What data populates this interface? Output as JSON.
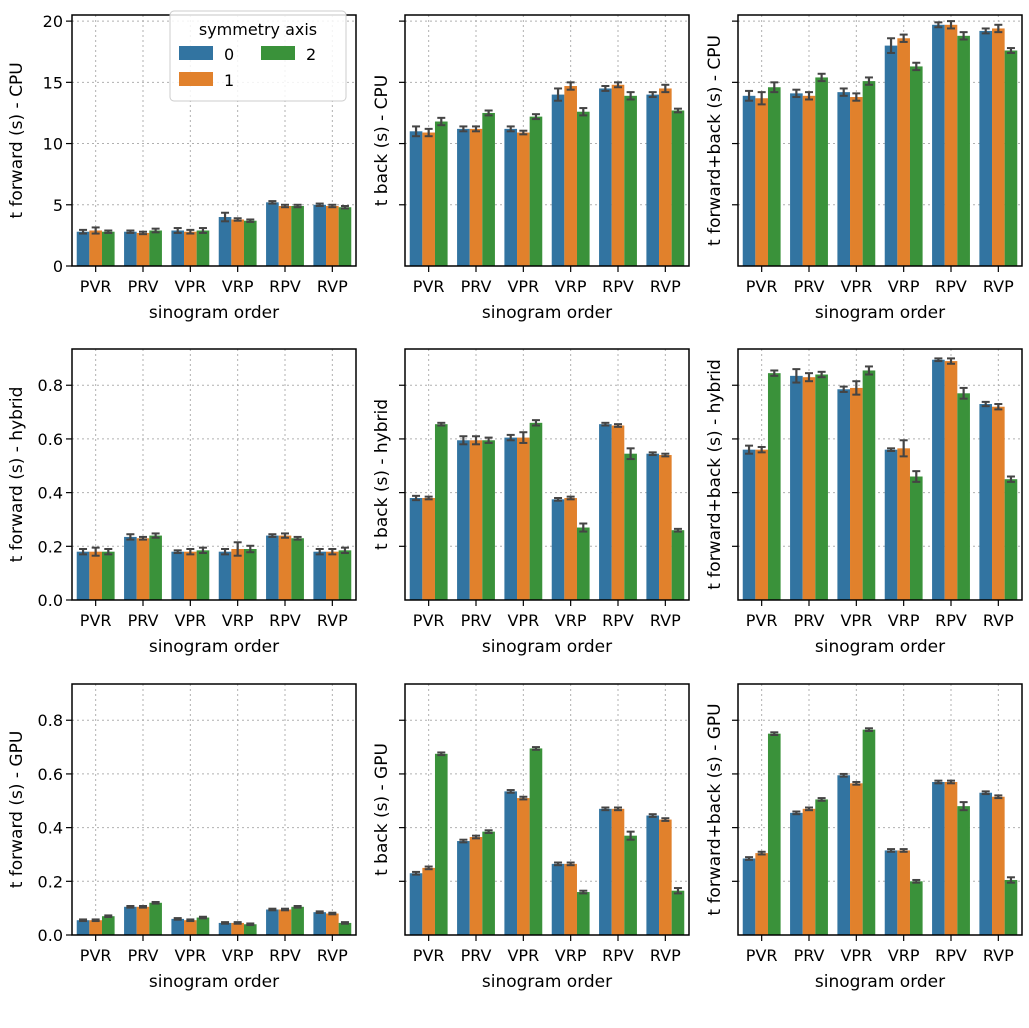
{
  "colors": {
    "0": "#3274a1",
    "1": "#e1812c",
    "2": "#3a923a",
    "error_bar": "#444444"
  },
  "legend": {
    "title": "symmetry axis",
    "labels": [
      "0",
      "1",
      "2"
    ]
  },
  "chart_data": [
    {
      "id": "cpu-forward",
      "type": "bar",
      "ylabel": "t forward (s) - CPU",
      "xlabel": "sinogram order",
      "categories": [
        "PVR",
        "PRV",
        "VPR",
        "VRP",
        "RPV",
        "RVP"
      ],
      "ylim": [
        0,
        20.5
      ],
      "yticks": [
        0,
        5,
        10,
        15,
        20
      ],
      "ytick_labels": [
        "0",
        "5",
        "10",
        "15",
        "20"
      ],
      "series": [
        {
          "name": "0",
          "values": [
            2.8,
            2.8,
            2.9,
            4.0,
            5.2,
            5.0
          ],
          "errors": [
            0.15,
            0.1,
            0.2,
            0.35,
            0.1,
            0.1
          ]
        },
        {
          "name": "1",
          "values": [
            2.9,
            2.7,
            2.8,
            3.8,
            4.9,
            4.9
          ],
          "errors": [
            0.25,
            0.1,
            0.15,
            0.1,
            0.1,
            0.1
          ]
        },
        {
          "name": "2",
          "values": [
            2.8,
            2.9,
            2.9,
            3.7,
            4.9,
            4.8
          ],
          "errors": [
            0.1,
            0.15,
            0.2,
            0.1,
            0.1,
            0.1
          ]
        }
      ]
    },
    {
      "id": "cpu-back",
      "type": "bar",
      "ylabel": "t back (s) - CPU",
      "xlabel": "sinogram order",
      "categories": [
        "PVR",
        "PRV",
        "VPR",
        "VRP",
        "RPV",
        "RVP"
      ],
      "ylim": [
        0,
        20.5
      ],
      "yticks": [
        5,
        10,
        15,
        20
      ],
      "ytick_labels": [],
      "series": [
        {
          "name": "0",
          "values": [
            11.0,
            11.2,
            11.2,
            14.0,
            14.5,
            14.0
          ],
          "errors": [
            0.4,
            0.2,
            0.2,
            0.5,
            0.2,
            0.2
          ]
        },
        {
          "name": "1",
          "values": [
            10.9,
            11.2,
            10.9,
            14.7,
            14.8,
            14.5
          ],
          "errors": [
            0.3,
            0.2,
            0.15,
            0.3,
            0.2,
            0.3
          ]
        },
        {
          "name": "2",
          "values": [
            11.8,
            12.5,
            12.2,
            12.6,
            13.9,
            12.7
          ],
          "errors": [
            0.3,
            0.2,
            0.2,
            0.3,
            0.3,
            0.15
          ]
        }
      ]
    },
    {
      "id": "cpu-forward-back",
      "type": "bar",
      "ylabel": "t forward+back (s) - CPU",
      "xlabel": "sinogram order",
      "categories": [
        "PVR",
        "PRV",
        "VPR",
        "VRP",
        "RPV",
        "RVP"
      ],
      "ylim": [
        0,
        20.5
      ],
      "yticks": [
        5,
        10,
        15,
        20
      ],
      "ytick_labels": [],
      "series": [
        {
          "name": "0",
          "values": [
            13.9,
            14.1,
            14.2,
            18.0,
            19.7,
            19.2
          ],
          "errors": [
            0.4,
            0.3,
            0.3,
            0.6,
            0.2,
            0.2
          ]
        },
        {
          "name": "1",
          "values": [
            13.7,
            13.9,
            13.8,
            18.6,
            19.7,
            19.4
          ],
          "errors": [
            0.5,
            0.3,
            0.3,
            0.3,
            0.3,
            0.3
          ]
        },
        {
          "name": "2",
          "values": [
            14.6,
            15.4,
            15.1,
            16.3,
            18.8,
            17.6
          ],
          "errors": [
            0.4,
            0.3,
            0.3,
            0.3,
            0.3,
            0.2
          ]
        }
      ]
    },
    {
      "id": "hybrid-forward",
      "type": "bar",
      "ylabel": "t forward (s) - hybrid",
      "xlabel": "sinogram order",
      "categories": [
        "PVR",
        "PRV",
        "VPR",
        "VRP",
        "RPV",
        "RVP"
      ],
      "ylim": [
        0,
        0.935
      ],
      "yticks": [
        0,
        0.2,
        0.4,
        0.6,
        0.8
      ],
      "ytick_labels": [
        "0.0",
        "0.2",
        "0.4",
        "0.6",
        "0.8"
      ],
      "series": [
        {
          "name": "0",
          "values": [
            0.18,
            0.235,
            0.18,
            0.18,
            0.24,
            0.18
          ],
          "errors": [
            0.01,
            0.01,
            0.005,
            0.01,
            0.005,
            0.01
          ]
        },
        {
          "name": "1",
          "values": [
            0.18,
            0.23,
            0.18,
            0.19,
            0.24,
            0.18
          ],
          "errors": [
            0.015,
            0.005,
            0.01,
            0.025,
            0.008,
            0.01
          ]
        },
        {
          "name": "2",
          "values": [
            0.18,
            0.24,
            0.185,
            0.19,
            0.23,
            0.185
          ],
          "errors": [
            0.01,
            0.008,
            0.01,
            0.012,
            0.005,
            0.01
          ]
        }
      ]
    },
    {
      "id": "hybrid-back",
      "type": "bar",
      "ylabel": "t back (s) - hybrid",
      "xlabel": "sinogram order",
      "categories": [
        "PVR",
        "PRV",
        "VPR",
        "VRP",
        "RPV",
        "RVP"
      ],
      "ylim": [
        0,
        0.935
      ],
      "yticks": [
        0.2,
        0.4,
        0.6,
        0.8
      ],
      "ytick_labels": [],
      "series": [
        {
          "name": "0",
          "values": [
            0.38,
            0.595,
            0.605,
            0.375,
            0.655,
            0.545
          ],
          "errors": [
            0.008,
            0.015,
            0.01,
            0.005,
            0.005,
            0.005
          ]
        },
        {
          "name": "1",
          "values": [
            0.38,
            0.595,
            0.605,
            0.38,
            0.65,
            0.54
          ],
          "errors": [
            0.005,
            0.015,
            0.02,
            0.005,
            0.005,
            0.005
          ]
        },
        {
          "name": "2",
          "values": [
            0.655,
            0.595,
            0.66,
            0.27,
            0.545,
            0.26
          ],
          "errors": [
            0.005,
            0.01,
            0.01,
            0.015,
            0.02,
            0.005
          ]
        }
      ]
    },
    {
      "id": "hybrid-forward-back",
      "type": "bar",
      "ylabel": "t forward+back (s) - hybrid",
      "xlabel": "sinogram order",
      "categories": [
        "PVR",
        "PRV",
        "VPR",
        "VRP",
        "RPV",
        "RVP"
      ],
      "ylim": [
        0,
        0.935
      ],
      "yticks": [
        0.2,
        0.4,
        0.6,
        0.8
      ],
      "ytick_labels": [],
      "series": [
        {
          "name": "0",
          "values": [
            0.56,
            0.835,
            0.785,
            0.56,
            0.895,
            0.73
          ],
          "errors": [
            0.015,
            0.025,
            0.01,
            0.005,
            0.005,
            0.008
          ]
        },
        {
          "name": "1",
          "values": [
            0.56,
            0.83,
            0.79,
            0.565,
            0.89,
            0.72
          ],
          "errors": [
            0.01,
            0.015,
            0.025,
            0.03,
            0.01,
            0.01
          ]
        },
        {
          "name": "2",
          "values": [
            0.845,
            0.84,
            0.855,
            0.46,
            0.77,
            0.45
          ],
          "errors": [
            0.01,
            0.01,
            0.015,
            0.02,
            0.02,
            0.01
          ]
        }
      ]
    },
    {
      "id": "gpu-forward",
      "type": "bar",
      "ylabel": "t forward (s) - GPU",
      "xlabel": "sinogram order",
      "categories": [
        "PVR",
        "PRV",
        "VPR",
        "VRP",
        "RPV",
        "RVP"
      ],
      "ylim": [
        0,
        0.935
      ],
      "yticks": [
        0,
        0.2,
        0.4,
        0.6,
        0.8
      ],
      "ytick_labels": [
        "0.0",
        "0.2",
        "0.4",
        "0.6",
        "0.8"
      ],
      "series": [
        {
          "name": "0",
          "values": [
            0.055,
            0.105,
            0.06,
            0.045,
            0.095,
            0.085
          ],
          "errors": [
            0.003,
            0.003,
            0.003,
            0.003,
            0.003,
            0.003
          ]
        },
        {
          "name": "1",
          "values": [
            0.055,
            0.105,
            0.055,
            0.045,
            0.095,
            0.08
          ],
          "errors": [
            0.003,
            0.003,
            0.003,
            0.003,
            0.003,
            0.003
          ]
        },
        {
          "name": "2",
          "values": [
            0.07,
            0.12,
            0.065,
            0.04,
            0.105,
            0.045
          ],
          "errors": [
            0.003,
            0.003,
            0.003,
            0.003,
            0.003,
            0.003
          ]
        }
      ]
    },
    {
      "id": "gpu-back",
      "type": "bar",
      "ylabel": "t back (s) - GPU",
      "xlabel": "sinogram order",
      "categories": [
        "PVR",
        "PRV",
        "VPR",
        "VRP",
        "RPV",
        "RVP"
      ],
      "ylim": [
        0,
        0.935
      ],
      "yticks": [
        0.2,
        0.4,
        0.6,
        0.8
      ],
      "ytick_labels": [],
      "series": [
        {
          "name": "0",
          "values": [
            0.23,
            0.35,
            0.535,
            0.265,
            0.47,
            0.445
          ],
          "errors": [
            0.005,
            0.005,
            0.005,
            0.005,
            0.005,
            0.005
          ]
        },
        {
          "name": "1",
          "values": [
            0.25,
            0.365,
            0.51,
            0.265,
            0.47,
            0.43
          ],
          "errors": [
            0.005,
            0.005,
            0.005,
            0.005,
            0.005,
            0.005
          ]
        },
        {
          "name": "2",
          "values": [
            0.675,
            0.385,
            0.695,
            0.16,
            0.37,
            0.165
          ],
          "errors": [
            0.005,
            0.005,
            0.005,
            0.005,
            0.015,
            0.01
          ]
        }
      ]
    },
    {
      "id": "gpu-forward-back",
      "type": "bar",
      "ylabel": "t forward+back (s) - GPU",
      "xlabel": "sinogram order",
      "categories": [
        "PVR",
        "PRV",
        "VPR",
        "VRP",
        "RPV",
        "RVP"
      ],
      "ylim": [
        0,
        0.935
      ],
      "yticks": [
        0.2,
        0.4,
        0.6,
        0.8
      ],
      "ytick_labels": [],
      "series": [
        {
          "name": "0",
          "values": [
            0.285,
            0.455,
            0.595,
            0.315,
            0.57,
            0.53
          ],
          "errors": [
            0.005,
            0.005,
            0.005,
            0.005,
            0.005,
            0.005
          ]
        },
        {
          "name": "1",
          "values": [
            0.305,
            0.47,
            0.565,
            0.315,
            0.57,
            0.515
          ],
          "errors": [
            0.005,
            0.005,
            0.005,
            0.005,
            0.005,
            0.005
          ]
        },
        {
          "name": "2",
          "values": [
            0.75,
            0.505,
            0.765,
            0.2,
            0.48,
            0.205
          ],
          "errors": [
            0.005,
            0.005,
            0.005,
            0.005,
            0.015,
            0.01
          ]
        }
      ]
    }
  ]
}
